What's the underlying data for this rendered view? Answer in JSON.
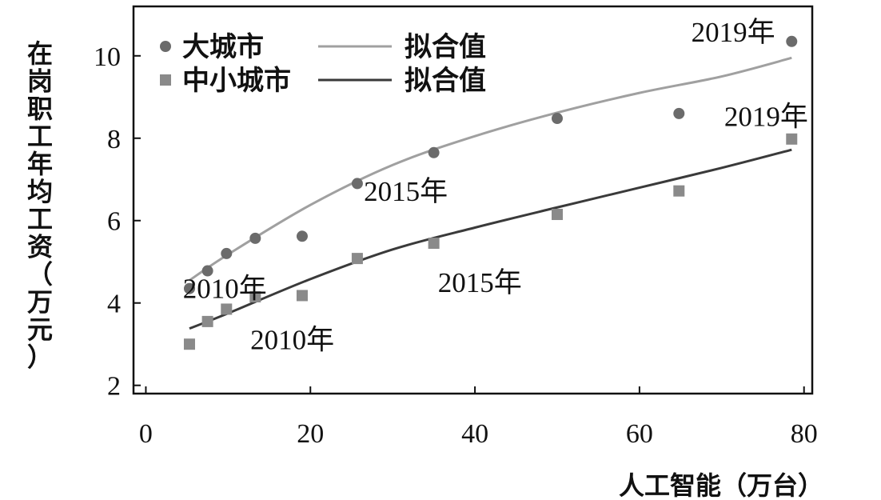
{
  "chart_data": {
    "type": "scatter",
    "title": "",
    "xlabel": "人工智能（万台）",
    "ylabel": "在岗职工年均工资（万元）",
    "xlim": [
      -1.5,
      81
    ],
    "ylim": [
      1.8,
      11.2
    ],
    "xticks": [
      0,
      20,
      40,
      60,
      80
    ],
    "yticks": [
      2,
      4,
      6,
      8,
      10
    ],
    "grid": false,
    "legend_position": "top-left",
    "series": [
      {
        "name": "大城市",
        "marker": "circle",
        "color": "#6b6b6b",
        "x": [
          5.3,
          7.5,
          9.8,
          13.3,
          19.0,
          25.7,
          35.0,
          50.0,
          64.8,
          78.5
        ],
        "y": [
          4.35,
          4.78,
          5.2,
          5.57,
          5.62,
          6.9,
          7.65,
          8.48,
          8.6,
          10.35
        ]
      },
      {
        "name": "中小城市",
        "marker": "square",
        "color": "#8a8a8a",
        "x": [
          5.3,
          7.5,
          9.8,
          13.3,
          19.0,
          25.7,
          35.0,
          50.0,
          64.8,
          78.5
        ],
        "y": [
          3.0,
          3.55,
          3.85,
          4.15,
          4.18,
          5.08,
          5.45,
          6.15,
          6.72,
          7.98
        ]
      }
    ],
    "fits": [
      {
        "name": "拟合值",
        "for": "大城市",
        "color": "#a0a0a0",
        "x": [
          5.3,
          10,
          20,
          30,
          40,
          50,
          60,
          70,
          78.5
        ],
        "y": [
          4.55,
          5.18,
          6.38,
          7.35,
          8.05,
          8.62,
          9.1,
          9.5,
          9.95
        ]
      },
      {
        "name": "拟合值",
        "for": "中小城市",
        "color": "#3a3a3a",
        "x": [
          5.3,
          10,
          20,
          30,
          40,
          50,
          60,
          70,
          78.5
        ],
        "y": [
          3.38,
          3.75,
          4.58,
          5.3,
          5.83,
          6.32,
          6.8,
          7.28,
          7.72
        ]
      }
    ],
    "annotations": [
      {
        "text": "2010年",
        "x": 4.5,
        "y": 4.12
      },
      {
        "text": "2010年",
        "x": 12.7,
        "y": 2.88
      },
      {
        "text": "2015年",
        "x": 26.5,
        "y": 6.48
      },
      {
        "text": "2015年",
        "x": 35.5,
        "y": 4.27
      },
      {
        "text": "2019年",
        "x": 76.5,
        "y": 10.35
      },
      {
        "text": "2019年",
        "x": 80.5,
        "y": 8.3
      }
    ],
    "legend": [
      {
        "label": "大城市",
        "kind": "marker",
        "series": 0
      },
      {
        "label": "中小城市",
        "kind": "marker",
        "series": 1
      },
      {
        "label": "拟合值",
        "kind": "line",
        "fit": 0
      },
      {
        "label": "拟合值",
        "kind": "line",
        "fit": 1
      }
    ]
  }
}
